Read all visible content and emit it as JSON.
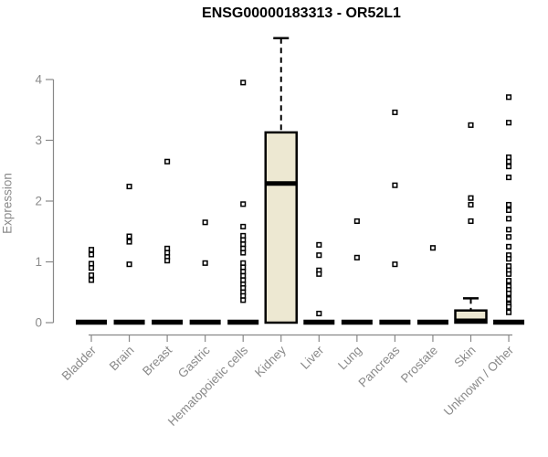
{
  "chart_data": {
    "type": "boxplot",
    "title": "ENSG00000183313 - OR52L1",
    "ylabel": "Expression",
    "xlabel": "",
    "ylim": [
      0,
      4.7
    ],
    "yticks": [
      0,
      1,
      2,
      3,
      4
    ],
    "grid": false,
    "legend": "none",
    "categories": [
      "Bladder",
      "Brain",
      "Breast",
      "Gastric",
      "Hematopoietic cells",
      "Kidney",
      "Liver",
      "Lung",
      "Pancreas",
      "Prostate",
      "Skin",
      "Unknown / Other"
    ],
    "series": [
      {
        "name": "Bladder",
        "q1": 0,
        "median": 0,
        "q3": 0,
        "whisker_low": 0,
        "whisker_high": 0,
        "outliers": [
          1.2,
          1.12,
          0.97,
          0.9,
          0.78,
          0.7
        ]
      },
      {
        "name": "Brain",
        "q1": 0,
        "median": 0,
        "q3": 0,
        "whisker_low": 0,
        "whisker_high": 0,
        "outliers": [
          2.24,
          1.42,
          1.33,
          0.96
        ]
      },
      {
        "name": "Breast",
        "q1": 0,
        "median": 0,
        "q3": 0,
        "whisker_low": 0,
        "whisker_high": 0,
        "outliers": [
          2.65,
          1.22,
          1.15,
          1.08,
          1.02
        ]
      },
      {
        "name": "Gastric",
        "q1": 0,
        "median": 0,
        "q3": 0,
        "whisker_low": 0,
        "whisker_high": 0,
        "outliers": [
          1.65,
          0.98
        ]
      },
      {
        "name": "Hematopoietic cells",
        "q1": 0,
        "median": 0,
        "q3": 0,
        "whisker_low": 0,
        "whisker_high": 0,
        "outliers": [
          3.95,
          1.95,
          1.58,
          1.43,
          1.36,
          1.29,
          1.22,
          1.15,
          0.98,
          0.91,
          0.84,
          0.77,
          0.7,
          0.63,
          0.57,
          0.5,
          0.44,
          0.37
        ]
      },
      {
        "name": "Kidney",
        "q1": 0,
        "median": 2.29,
        "q3": 3.13,
        "whisker_low": 0,
        "whisker_high": 4.68,
        "outliers": []
      },
      {
        "name": "Liver",
        "q1": 0,
        "median": 0,
        "q3": 0,
        "whisker_low": 0,
        "whisker_high": 0,
        "outliers": [
          1.28,
          1.11,
          0.86,
          0.8,
          0.15
        ]
      },
      {
        "name": "Lung",
        "q1": 0,
        "median": 0,
        "q3": 0,
        "whisker_low": 0,
        "whisker_high": 0,
        "outliers": [
          1.67,
          1.07
        ]
      },
      {
        "name": "Pancreas",
        "q1": 0,
        "median": 0,
        "q3": 0,
        "whisker_low": 0,
        "whisker_high": 0,
        "outliers": [
          3.46,
          2.26,
          0.96
        ]
      },
      {
        "name": "Prostate",
        "q1": 0,
        "median": 0,
        "q3": 0,
        "whisker_low": 0,
        "whisker_high": 0,
        "outliers": [
          1.23
        ]
      },
      {
        "name": "Skin",
        "q1": 0,
        "median": 0,
        "q3": 0.2,
        "whisker_low": 0,
        "whisker_high": 0.4,
        "outliers": [
          3.25,
          2.05,
          1.94,
          1.67
        ]
      },
      {
        "name": "Unknown / Other",
        "q1": 0,
        "median": 0,
        "q3": 0,
        "whisker_low": 0,
        "whisker_high": 0,
        "outliers": [
          3.71,
          3.29,
          2.72,
          2.65,
          2.57,
          2.39,
          1.94,
          1.85,
          1.71,
          1.53,
          1.41,
          1.25,
          1.11,
          1.05,
          0.93,
          0.86,
          0.8,
          0.69,
          0.6,
          0.54,
          0.48,
          0.39,
          0.3,
          0.26,
          0.17
        ]
      }
    ],
    "colors": {
      "box_fill": "#EDE8D2",
      "box_stroke": "#000000",
      "outlier_stroke": "#000000",
      "outlier_fill": "#ffffff",
      "axis_line": "#888888",
      "axis_text": "#8a8a8a",
      "title_text": "#000000"
    }
  }
}
